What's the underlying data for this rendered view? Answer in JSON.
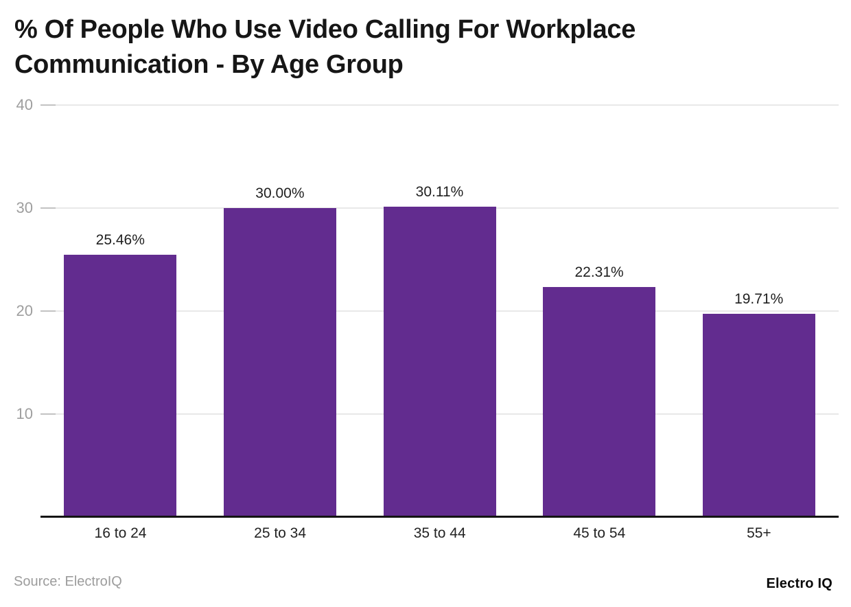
{
  "header": {
    "title": "% Of People Who Use Video Calling For Workplace Communication - By Age Group"
  },
  "chart_data": {
    "type": "bar",
    "title": "% Of People Who Use Video Calling For Workplace Communication - By Age Group",
    "categories": [
      "16 to 24",
      "25 to 34",
      "35 to 44",
      "45 to 54",
      "55+"
    ],
    "values": [
      25.46,
      30.0,
      30.11,
      22.31,
      19.71
    ],
    "value_labels": [
      "25.46%",
      "30.00%",
      "30.11%",
      "22.31%",
      "19.71%"
    ],
    "xlabel": "",
    "ylabel": "",
    "ylim": [
      0,
      40
    ],
    "yticks": [
      10,
      20,
      30,
      40
    ],
    "grid": true,
    "legend": false,
    "bar_color": "#622c8f"
  },
  "footer": {
    "source": "Source: ElectroIQ",
    "brand": "Electro IQ"
  },
  "colors": {
    "bar": "#622c8f",
    "gridline": "#e8e8e8",
    "grid_tick": "#c2c2c2",
    "axis_line": "#141414",
    "ytick_text": "#9e9e9e",
    "xtick_text": "#222222",
    "value_text": "#1f1f1f",
    "title_text": "#161616",
    "source_text": "#9c9c9c",
    "brand_text": "#0a0a0a",
    "background": "#ffffff"
  }
}
